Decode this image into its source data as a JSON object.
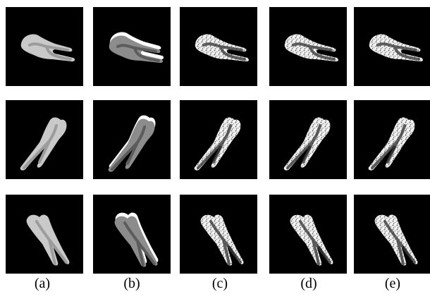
{
  "figure": {
    "panel_labels": [
      "(a)",
      "(b)",
      "(c)",
      "(d)",
      "(e)"
    ]
  }
}
